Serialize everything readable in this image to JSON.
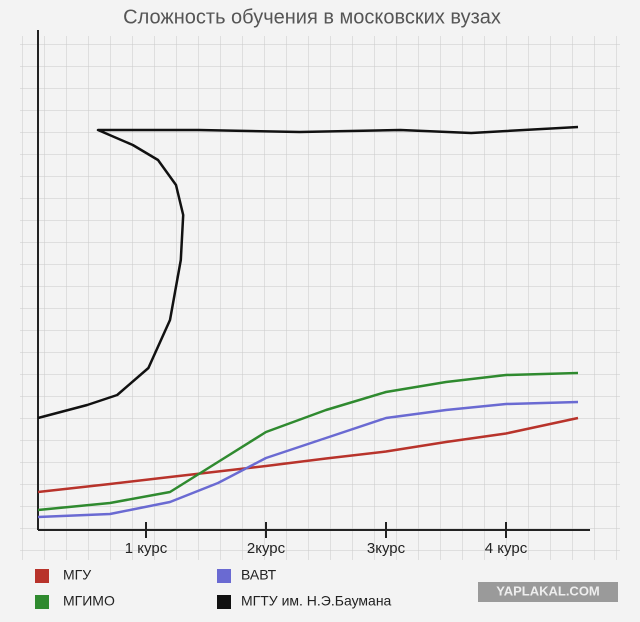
{
  "chart_data": {
    "type": "line",
    "title": "Сложность обучения в московских вузах",
    "xlim": [
      0.1,
      4.7
    ],
    "ylim": [
      0,
      100
    ],
    "xticks": [
      {
        "value": 1,
        "label": "1 курс"
      },
      {
        "value": 2,
        "label": "2курс"
      },
      {
        "value": 3,
        "label": "3курс"
      },
      {
        "value": 4,
        "label": "4 курс"
      }
    ],
    "x": [
      0.1,
      0.7,
      1.2,
      1.6,
      2,
      2.5,
      3,
      3.5,
      4,
      4.6
    ],
    "series": [
      {
        "name": "МГУ",
        "color": "#b8332b",
        "values": [
          7.6,
          9.2,
          10.6,
          11.7,
          12.8,
          14.3,
          15.7,
          17.6,
          19.3,
          22.4
        ]
      },
      {
        "name": "МГИМО",
        "color": "#2f8a2f",
        "values": [
          4,
          5.4,
          7.6,
          13.6,
          19.6,
          24,
          27.6,
          29.6,
          31,
          31.4
        ]
      },
      {
        "name": "ВАВТ",
        "color": "#6a6ad2",
        "values": [
          2.6,
          3.2,
          5.6,
          9.4,
          14.4,
          18.4,
          22.4,
          24,
          25.2,
          25.6
        ]
      },
      {
        "name": "МГТУ им. Н.Э.Баумана",
        "color": "#111111",
        "x": [
          0.1,
          0.51,
          0.76,
          1.02,
          1.2,
          1.29,
          1.31,
          1.25,
          1.1,
          0.89,
          0.6,
          1.44,
          2.28,
          3.12,
          3.71,
          4.6
        ],
        "values": [
          22.4,
          25,
          27,
          32.4,
          42,
          54,
          63,
          69,
          74,
          77,
          80,
          80,
          79.6,
          80,
          79.4,
          80.6
        ]
      }
    ],
    "watermark": "YAPLAKAL.COM"
  }
}
